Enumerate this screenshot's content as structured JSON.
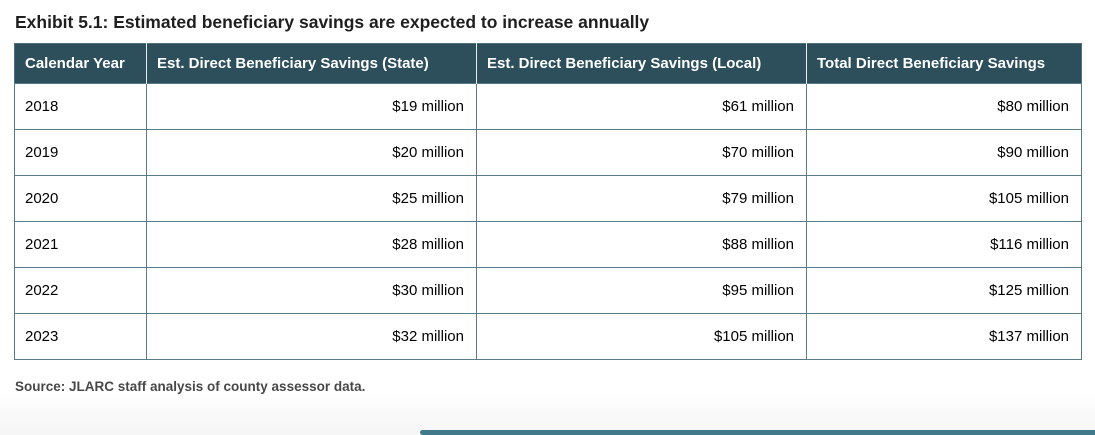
{
  "title": "Exhibit 5.1: Estimated beneficiary savings are expected to increase annually",
  "table": {
    "columns": [
      "Calendar Year",
      "Est. Direct Beneficiary Savings (State)",
      "Est. Direct Beneficiary Savings (Local)",
      "Total Direct Beneficiary Savings"
    ],
    "rows": [
      [
        "2018",
        "$19 million",
        "$61 million",
        "$80 million"
      ],
      [
        "2019",
        "$20 million",
        "$70 million",
        "$90 million"
      ],
      [
        "2020",
        "$25 million",
        "$79 million",
        "$105 million"
      ],
      [
        "2021",
        "$28 million",
        "$88 million",
        "$116 million"
      ],
      [
        "2022",
        "$30 million",
        "$95 million",
        "$125 million"
      ],
      [
        "2023",
        "$32 million",
        "$105 million",
        "$137 million"
      ]
    ]
  },
  "source": "Source: JLARC staff analysis of county assessor data.",
  "colors": {
    "header_bg": "#2d4f5c",
    "header_text": "#ffffff",
    "cell_border": "#597a88",
    "accent_bar": "#41788a"
  },
  "chart_data": {
    "type": "table",
    "title": "Exhibit 5.1: Estimated beneficiary savings are expected to increase annually",
    "categories": [
      "2018",
      "2019",
      "2020",
      "2021",
      "2022",
      "2023"
    ],
    "series": [
      {
        "name": "Est. Direct Beneficiary Savings (State)",
        "unit": "$ million",
        "values": [
          19,
          20,
          25,
          28,
          30,
          32
        ]
      },
      {
        "name": "Est. Direct Beneficiary Savings (Local)",
        "unit": "$ million",
        "values": [
          61,
          70,
          79,
          88,
          95,
          105
        ]
      },
      {
        "name": "Total Direct Beneficiary Savings",
        "unit": "$ million",
        "values": [
          80,
          90,
          105,
          116,
          125,
          137
        ]
      }
    ],
    "xlabel": "Calendar Year",
    "source": "Source: JLARC staff analysis of county assessor data."
  }
}
